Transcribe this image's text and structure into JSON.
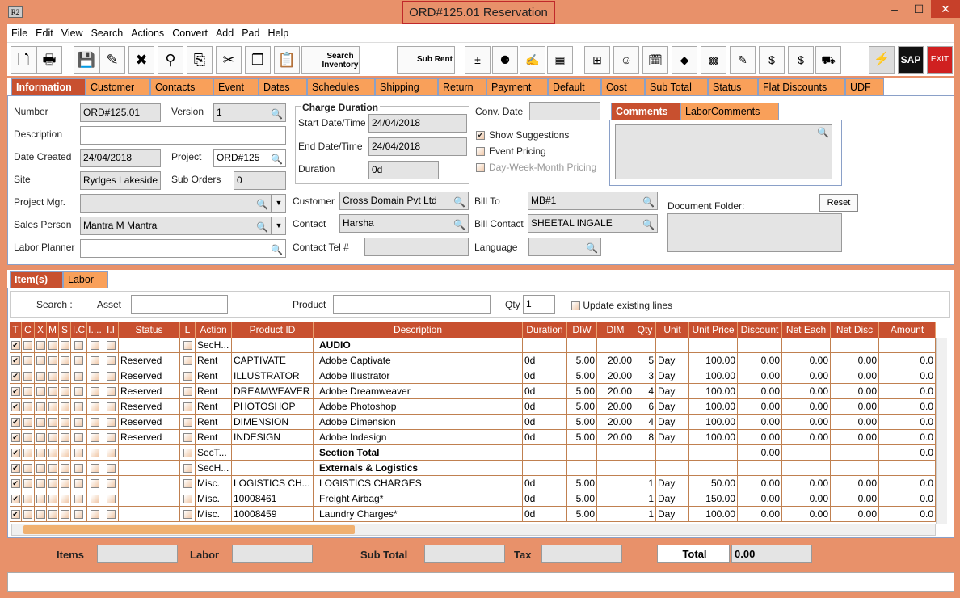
{
  "window": {
    "title": "ORD#125.01 Reservation",
    "logo": "R2",
    "minimize": "–",
    "maximize": "☐",
    "close": "✕"
  },
  "menu": [
    "File",
    "Edit",
    "View",
    "Search",
    "Actions",
    "Convert",
    "Add",
    "Pad",
    "Help"
  ],
  "toolbar": {
    "search_inventory": "Search Inventory",
    "sub_rent": "Sub Rent",
    "sap": "SAP",
    "exit": "EXIT",
    "icons": [
      "new-document-icon",
      "print-icon",
      "save-icon",
      "edit-pencil-icon",
      "delete-icon",
      "binoculars-icon",
      "copy-transfer-icon",
      "cut-icon",
      "copy-icon",
      "paste-icon"
    ]
  },
  "tabs": [
    "Information",
    "Customer",
    "Contacts",
    "Event",
    "Dates",
    "Schedules",
    "Shipping",
    "Return",
    "Payment",
    "Default",
    "Cost",
    "Sub Total",
    "Status",
    "Flat Discounts",
    "UDF"
  ],
  "info": {
    "number_label": "Number",
    "number": "ORD#125.01",
    "version_label": "Version",
    "version": "1",
    "description_label": "Description",
    "description": "",
    "date_created_label": "Date Created",
    "date_created": "24/04/2018",
    "project_label": "Project",
    "project": "ORD#125",
    "site_label": "Site",
    "site": "Rydges Lakeside",
    "sub_orders_label": "Sub Orders",
    "sub_orders": "0",
    "project_mgr_label": "Project Mgr.",
    "project_mgr": "",
    "sales_person_label": "Sales Person",
    "sales_person": "Mantra M Mantra",
    "labor_planner_label": "Labor Planner",
    "labor_planner": "",
    "charge_duration_title": "Charge Duration",
    "start_label": "Start Date/Time",
    "start": "24/04/2018",
    "end_label": "End Date/Time",
    "end": "24/04/2018",
    "duration_label": "Duration",
    "duration": "0d",
    "conv_date_label": "Conv. Date",
    "conv_date": "",
    "show_suggestions": "Show Suggestions",
    "event_pricing": "Event Pricing",
    "dwm_pricing": "Day-Week-Month Pricing",
    "customer_label": "Customer",
    "customer": "Cross Domain Pvt Ltd",
    "contact_label": "Contact",
    "contact": "Harsha",
    "contact_tel_label": "Contact Tel #",
    "contact_tel": "",
    "bill_to_label": "Bill To",
    "bill_to": "MB#1",
    "bill_contact_label": "Bill Contact",
    "bill_contact": "SHEETAL INGALE",
    "language_label": "Language",
    "language": "",
    "comments_tab": "Comments",
    "labor_comments_tab": "LaborComments",
    "document_folder_label": "Document Folder:",
    "reset": "Reset"
  },
  "lower_tabs": [
    "Item(s)",
    "Labor"
  ],
  "search": {
    "label": "Search :",
    "asset_label": "Asset",
    "asset": "",
    "product_label": "Product",
    "product": "",
    "qty_label": "Qty",
    "qty": "1",
    "update_existing": "Update existing lines"
  },
  "columns": [
    "T",
    "C",
    "X",
    "M",
    "S",
    "I.C",
    "I....",
    "I.I",
    "Status",
    "L",
    "Action",
    "Product ID",
    "Description",
    "Duration",
    "DIW",
    "DIM",
    "Qty",
    "Unit",
    "Unit Price",
    "Discount",
    "Net Each",
    "Net Disc",
    "Amount"
  ],
  "rows": [
    {
      "status": "",
      "action": "SecH...",
      "product": "",
      "desc": "AUDIO",
      "bold": true,
      "duration": "",
      "diw": "",
      "dim": "",
      "qty": "",
      "unit": "",
      "price": "",
      "discount": "",
      "net_each": "",
      "net_disc": "",
      "amount": ""
    },
    {
      "status": "Reserved",
      "action": "Rent",
      "product": "CAPTIVATE",
      "desc": "Adobe Captivate",
      "duration": "0d",
      "diw": "5.00",
      "dim": "20.00",
      "qty": "5",
      "unit": "Day",
      "price": "100.00",
      "discount": "0.00",
      "net_each": "0.00",
      "net_disc": "0.00",
      "amount": "0.0"
    },
    {
      "status": "Reserved",
      "action": "Rent",
      "product": "ILLUSTRATOR",
      "desc": "Adobe Illustrator",
      "duration": "0d",
      "diw": "5.00",
      "dim": "20.00",
      "qty": "3",
      "unit": "Day",
      "price": "100.00",
      "discount": "0.00",
      "net_each": "0.00",
      "net_disc": "0.00",
      "amount": "0.0"
    },
    {
      "status": "Reserved",
      "action": "Rent",
      "product": "DREAMWEAVER",
      "desc": "Adobe Dreamweaver",
      "duration": "0d",
      "diw": "5.00",
      "dim": "20.00",
      "qty": "4",
      "unit": "Day",
      "price": "100.00",
      "discount": "0.00",
      "net_each": "0.00",
      "net_disc": "0.00",
      "amount": "0.0"
    },
    {
      "status": "Reserved",
      "action": "Rent",
      "product": "PHOTOSHOP",
      "desc": "Adobe Photoshop",
      "duration": "0d",
      "diw": "5.00",
      "dim": "20.00",
      "qty": "6",
      "unit": "Day",
      "price": "100.00",
      "discount": "0.00",
      "net_each": "0.00",
      "net_disc": "0.00",
      "amount": "0.0"
    },
    {
      "status": "Reserved",
      "action": "Rent",
      "product": "DIMENSION",
      "desc": "Adobe Dimension",
      "duration": "0d",
      "diw": "5.00",
      "dim": "20.00",
      "qty": "4",
      "unit": "Day",
      "price": "100.00",
      "discount": "0.00",
      "net_each": "0.00",
      "net_disc": "0.00",
      "amount": "0.0"
    },
    {
      "status": "Reserved",
      "action": "Rent",
      "product": "INDESIGN",
      "desc": "Adobe Indesign",
      "duration": "0d",
      "diw": "5.00",
      "dim": "20.00",
      "qty": "8",
      "unit": "Day",
      "price": "100.00",
      "discount": "0.00",
      "net_each": "0.00",
      "net_disc": "0.00",
      "amount": "0.0"
    },
    {
      "status": "",
      "action": "SecT...",
      "product": "",
      "desc": "Section Total",
      "bold": true,
      "duration": "",
      "diw": "",
      "dim": "",
      "qty": "",
      "unit": "",
      "price": "",
      "discount": "0.00",
      "net_each": "",
      "net_disc": "",
      "amount": "0.0"
    },
    {
      "status": "",
      "action": "SecH...",
      "product": "",
      "desc": "Externals & Logistics",
      "bold": true,
      "duration": "",
      "diw": "",
      "dim": "",
      "qty": "",
      "unit": "",
      "price": "",
      "discount": "",
      "net_each": "",
      "net_disc": "",
      "amount": ""
    },
    {
      "status": "",
      "action": "Misc.",
      "product": "LOGISTICS CH...",
      "desc": "LOGISTICS CHARGES",
      "duration": "0d",
      "diw": "5.00",
      "dim": "",
      "qty": "1",
      "unit": "Day",
      "price": "50.00",
      "discount": "0.00",
      "net_each": "0.00",
      "net_disc": "0.00",
      "amount": "0.0"
    },
    {
      "status": "",
      "action": "Misc.",
      "product": "10008461",
      "desc": "Freight Airbag*",
      "duration": "0d",
      "diw": "5.00",
      "dim": "",
      "qty": "1",
      "unit": "Day",
      "price": "150.00",
      "discount": "0.00",
      "net_each": "0.00",
      "net_disc": "0.00",
      "amount": "0.0"
    },
    {
      "status": "",
      "action": "Misc.",
      "product": "10008459",
      "desc": "Laundry Charges*",
      "duration": "0d",
      "diw": "5.00",
      "dim": "",
      "qty": "1",
      "unit": "Day",
      "price": "100.00",
      "discount": "0.00",
      "net_each": "0.00",
      "net_disc": "0.00",
      "amount": "0.0"
    }
  ],
  "totals": {
    "items_label": "Items",
    "items": "",
    "labor_label": "Labor",
    "labor": "",
    "sub_total_label": "Sub Total",
    "sub_total": "",
    "tax_label": "Tax",
    "tax": "",
    "total_label": "Total",
    "total": "0.00"
  },
  "colors": {
    "accent": "#c8502f",
    "tab": "#f9a05a",
    "frame": "#e8916a"
  }
}
